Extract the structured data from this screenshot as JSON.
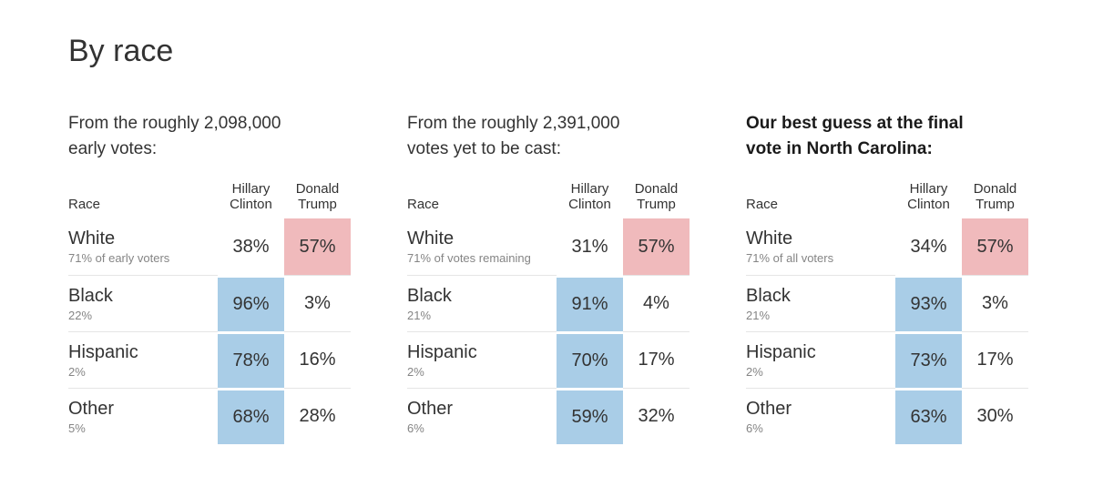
{
  "page_title": "By race",
  "colors": {
    "clinton_highlight": "#a9cde7",
    "trump_highlight": "#f0babc",
    "row_border": "#e5e5e5",
    "text": "#333333",
    "muted": "#858585",
    "bold_text": "#1a1a1a"
  },
  "tables": [
    {
      "intro": "From the roughly 2,098,000\nearly votes:",
      "bold": false,
      "columns": {
        "race": "Race",
        "clinton": "Hillary\nClinton",
        "trump": "Donald\nTrump"
      },
      "rows": [
        {
          "race": "White",
          "sub": "71% of early voters",
          "clinton": "38%",
          "trump": "57%",
          "highlight": "trump"
        },
        {
          "race": "Black",
          "sub": "22%",
          "clinton": "96%",
          "trump": "3%",
          "highlight": "clinton"
        },
        {
          "race": "Hispanic",
          "sub": "2%",
          "clinton": "78%",
          "trump": "16%",
          "highlight": "clinton"
        },
        {
          "race": "Other",
          "sub": "5%",
          "clinton": "68%",
          "trump": "28%",
          "highlight": "clinton"
        }
      ]
    },
    {
      "intro": "From the roughly 2,391,000\nvotes yet to be cast:",
      "bold": false,
      "columns": {
        "race": "Race",
        "clinton": "Hillary\nClinton",
        "trump": "Donald\nTrump"
      },
      "rows": [
        {
          "race": "White",
          "sub": "71% of votes remaining",
          "clinton": "31%",
          "trump": "57%",
          "highlight": "trump"
        },
        {
          "race": "Black",
          "sub": "21%",
          "clinton": "91%",
          "trump": "4%",
          "highlight": "clinton"
        },
        {
          "race": "Hispanic",
          "sub": "2%",
          "clinton": "70%",
          "trump": "17%",
          "highlight": "clinton"
        },
        {
          "race": "Other",
          "sub": "6%",
          "clinton": "59%",
          "trump": "32%",
          "highlight": "clinton"
        }
      ]
    },
    {
      "intro": "Our best guess at the final\nvote in North Carolina:",
      "bold": true,
      "columns": {
        "race": "Race",
        "clinton": "Hillary\nClinton",
        "trump": "Donald\nTrump"
      },
      "rows": [
        {
          "race": "White",
          "sub": "71% of all voters",
          "clinton": "34%",
          "trump": "57%",
          "highlight": "trump"
        },
        {
          "race": "Black",
          "sub": "21%",
          "clinton": "93%",
          "trump": "3%",
          "highlight": "clinton"
        },
        {
          "race": "Hispanic",
          "sub": "2%",
          "clinton": "73%",
          "trump": "17%",
          "highlight": "clinton"
        },
        {
          "race": "Other",
          "sub": "6%",
          "clinton": "63%",
          "trump": "30%",
          "highlight": "clinton"
        }
      ]
    }
  ],
  "chart_data": [
    {
      "type": "table",
      "title": "From the roughly 2,098,000 early votes:",
      "total_votes": 2098000,
      "categories": [
        "White",
        "Black",
        "Hispanic",
        "Other"
      ],
      "group_share_pct": [
        71,
        22,
        2,
        5
      ],
      "group_share_note": "share of early voters",
      "series": [
        {
          "name": "Hillary Clinton",
          "values": [
            38,
            96,
            78,
            68
          ]
        },
        {
          "name": "Donald Trump",
          "values": [
            57,
            3,
            16,
            28
          ]
        }
      ],
      "highlighted_leader_per_row": [
        "Donald Trump",
        "Hillary Clinton",
        "Hillary Clinton",
        "Hillary Clinton"
      ]
    },
    {
      "type": "table",
      "title": "From the roughly 2,391,000 votes yet to be cast:",
      "total_votes": 2391000,
      "categories": [
        "White",
        "Black",
        "Hispanic",
        "Other"
      ],
      "group_share_pct": [
        71,
        21,
        2,
        6
      ],
      "group_share_note": "share of votes remaining",
      "series": [
        {
          "name": "Hillary Clinton",
          "values": [
            31,
            91,
            70,
            59
          ]
        },
        {
          "name": "Donald Trump",
          "values": [
            57,
            4,
            17,
            32
          ]
        }
      ],
      "highlighted_leader_per_row": [
        "Donald Trump",
        "Hillary Clinton",
        "Hillary Clinton",
        "Hillary Clinton"
      ]
    },
    {
      "type": "table",
      "title": "Our best guess at the final vote in North Carolina:",
      "categories": [
        "White",
        "Black",
        "Hispanic",
        "Other"
      ],
      "group_share_pct": [
        71,
        21,
        2,
        6
      ],
      "group_share_note": "share of all voters",
      "series": [
        {
          "name": "Hillary Clinton",
          "values": [
            34,
            93,
            73,
            63
          ]
        },
        {
          "name": "Donald Trump",
          "values": [
            57,
            3,
            17,
            30
          ]
        }
      ],
      "highlighted_leader_per_row": [
        "Donald Trump",
        "Hillary Clinton",
        "Hillary Clinton",
        "Hillary Clinton"
      ]
    }
  ]
}
